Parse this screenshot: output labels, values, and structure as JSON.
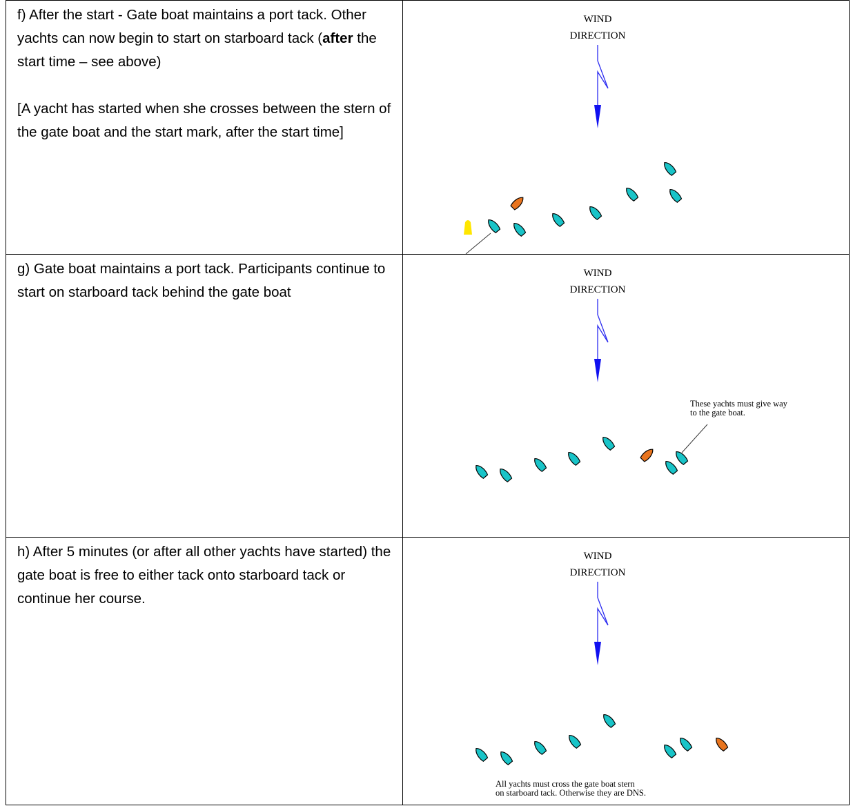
{
  "rows": [
    {
      "paragraph_1": [
        "f) After the start - Gate boat maintains a port tack. Other yachts can now begin to start on starboard tack (",
        "after",
        " the start time – see above)"
      ],
      "paragraph_2": "[A yacht has started when she crosses between the stern of the gate boat and the start mark, after the start time]",
      "wind_label": [
        "WIND",
        "DIRECTION"
      ]
    },
    {
      "paragraph_1": [
        "g) Gate boat maintains a port tack. Participants continue to start on starboard tack behind the gate boat"
      ],
      "wind_label": [
        "WIND",
        "DIRECTION"
      ],
      "annotation": [
        "These yachts must give way",
        "to the gate boat."
      ]
    },
    {
      "paragraph_1": [
        "h) After 5 minutes (or after all other yachts have started) the gate boat is free to either tack onto starboard tack or continue her course."
      ],
      "wind_label": [
        "WIND",
        "DIRECTION"
      ],
      "annotation": [
        "All yachts must cross the gate boat stern",
        "on starboard tack.  Otherwise they are DNS."
      ]
    }
  ]
}
